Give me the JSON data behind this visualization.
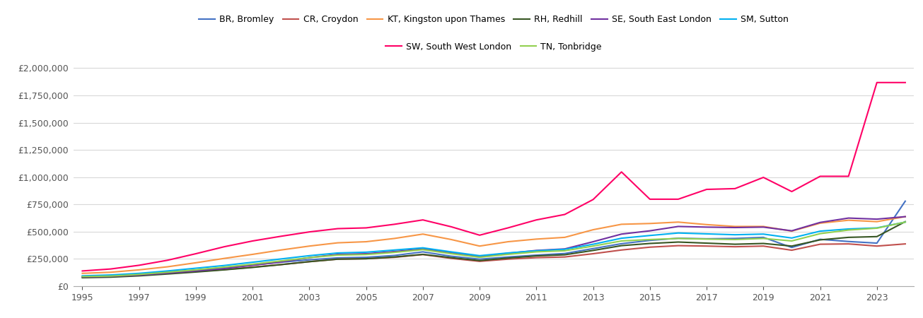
{
  "series": {
    "BR, Bromley": {
      "color": "#4472c4",
      "data": {
        "1995": 90000,
        "1996": 98000,
        "1997": 112000,
        "1998": 130000,
        "1999": 148000,
        "2000": 170000,
        "2001": 195000,
        "2002": 220000,
        "2003": 242000,
        "2004": 260000,
        "2005": 265000,
        "2006": 282000,
        "2007": 315000,
        "2008": 275000,
        "2009": 248000,
        "2010": 268000,
        "2011": 285000,
        "2012": 300000,
        "2013": 345000,
        "2014": 390000,
        "2015": 420000,
        "2016": 440000,
        "2017": 435000,
        "2018": 438000,
        "2019": 448000,
        "2020": 355000,
        "2021": 430000,
        "2022": 410000,
        "2023": 395000,
        "2024": 780000
      }
    },
    "CR, Croydon": {
      "color": "#c0504d",
      "data": {
        "1995": 82000,
        "1996": 88000,
        "1997": 100000,
        "1998": 118000,
        "1999": 135000,
        "2000": 152000,
        "2001": 175000,
        "2002": 198000,
        "2003": 225000,
        "2004": 248000,
        "2005": 252000,
        "2006": 265000,
        "2007": 290000,
        "2008": 255000,
        "2009": 228000,
        "2010": 248000,
        "2011": 262000,
        "2012": 268000,
        "2013": 298000,
        "2014": 332000,
        "2015": 358000,
        "2016": 372000,
        "2017": 368000,
        "2018": 362000,
        "2019": 368000,
        "2020": 330000,
        "2021": 385000,
        "2022": 388000,
        "2023": 368000,
        "2024": 388000
      }
    },
    "KT, Kingston upon Thames": {
      "color": "#f79646",
      "data": {
        "1995": 118000,
        "1996": 128000,
        "1997": 150000,
        "1998": 178000,
        "1999": 215000,
        "2000": 255000,
        "2001": 292000,
        "2002": 332000,
        "2003": 368000,
        "2004": 398000,
        "2005": 408000,
        "2006": 438000,
        "2007": 478000,
        "2008": 428000,
        "2009": 368000,
        "2010": 408000,
        "2011": 432000,
        "2012": 448000,
        "2013": 518000,
        "2014": 568000,
        "2015": 575000,
        "2016": 588000,
        "2017": 565000,
        "2018": 548000,
        "2019": 548000,
        "2020": 505000,
        "2021": 578000,
        "2022": 605000,
        "2023": 592000,
        "2024": 638000
      }
    },
    "RH, Redhill": {
      "color": "#375623",
      "data": {
        "1995": 78000,
        "1996": 83000,
        "1997": 95000,
        "1998": 112000,
        "1999": 130000,
        "2000": 150000,
        "2001": 172000,
        "2002": 198000,
        "2003": 225000,
        "2004": 248000,
        "2005": 252000,
        "2006": 268000,
        "2007": 292000,
        "2008": 262000,
        "2009": 235000,
        "2010": 258000,
        "2011": 278000,
        "2012": 288000,
        "2013": 328000,
        "2014": 372000,
        "2015": 392000,
        "2016": 405000,
        "2017": 395000,
        "2018": 385000,
        "2019": 392000,
        "2020": 368000,
        "2021": 425000,
        "2022": 448000,
        "2023": 455000,
        "2024": 592000
      }
    },
    "SE, South East London": {
      "color": "#7030a0",
      "data": {
        "1995": 85000,
        "1996": 90000,
        "1997": 102000,
        "1998": 120000,
        "1999": 140000,
        "2000": 162000,
        "2001": 192000,
        "2002": 222000,
        "2003": 262000,
        "2004": 292000,
        "2005": 298000,
        "2006": 318000,
        "2007": 342000,
        "2008": 308000,
        "2009": 272000,
        "2010": 302000,
        "2011": 328000,
        "2012": 342000,
        "2013": 408000,
        "2014": 478000,
        "2015": 508000,
        "2016": 548000,
        "2017": 542000,
        "2018": 538000,
        "2019": 542000,
        "2020": 508000,
        "2021": 585000,
        "2022": 625000,
        "2023": 615000,
        "2024": 638000
      }
    },
    "SM, Sutton": {
      "color": "#00b0f0",
      "data": {
        "1995": 95000,
        "1996": 103000,
        "1997": 118000,
        "1998": 140000,
        "1999": 165000,
        "2000": 190000,
        "2001": 220000,
        "2002": 250000,
        "2003": 280000,
        "2004": 305000,
        "2005": 312000,
        "2006": 332000,
        "2007": 352000,
        "2008": 315000,
        "2009": 280000,
        "2010": 305000,
        "2011": 325000,
        "2012": 338000,
        "2013": 385000,
        "2014": 440000,
        "2015": 465000,
        "2016": 488000,
        "2017": 480000,
        "2018": 472000,
        "2019": 478000,
        "2020": 442000,
        "2021": 505000,
        "2022": 525000,
        "2023": 535000,
        "2024": 588000
      }
    },
    "SW, South West London": {
      "color": "#ff0066",
      "data": {
        "1995": 140000,
        "1996": 158000,
        "1997": 192000,
        "1998": 238000,
        "1999": 298000,
        "2000": 362000,
        "2001": 415000,
        "2002": 458000,
        "2003": 498000,
        "2004": 528000,
        "2005": 535000,
        "2006": 568000,
        "2007": 608000,
        "2008": 545000,
        "2009": 468000,
        "2010": 535000,
        "2011": 608000,
        "2012": 658000,
        "2013": 795000,
        "2014": 1048000,
        "2015": 798000,
        "2016": 798000,
        "2017": 888000,
        "2018": 895000,
        "2019": 998000,
        "2020": 868000,
        "2021": 1008000,
        "2022": 1008000,
        "2023": 1868000,
        "2024": 1868000
      }
    },
    "TN, Tonbridge": {
      "color": "#92d050",
      "data": {
        "1995": 88000,
        "1996": 93000,
        "1997": 108000,
        "1998": 128000,
        "1999": 150000,
        "2000": 175000,
        "2001": 202000,
        "2002": 232000,
        "2003": 262000,
        "2004": 285000,
        "2005": 290000,
        "2006": 310000,
        "2007": 335000,
        "2008": 298000,
        "2009": 265000,
        "2010": 292000,
        "2011": 315000,
        "2012": 325000,
        "2013": 368000,
        "2014": 415000,
        "2015": 428000,
        "2016": 438000,
        "2017": 432000,
        "2018": 428000,
        "2019": 438000,
        "2020": 415000,
        "2021": 482000,
        "2022": 515000,
        "2023": 532000,
        "2024": 588000
      }
    }
  },
  "years": [
    1995,
    1996,
    1997,
    1998,
    1999,
    2000,
    2001,
    2002,
    2003,
    2004,
    2005,
    2006,
    2007,
    2008,
    2009,
    2010,
    2011,
    2012,
    2013,
    2014,
    2015,
    2016,
    2017,
    2018,
    2019,
    2020,
    2021,
    2022,
    2023,
    2024
  ],
  "ylim": [
    0,
    2100000
  ],
  "yticks": [
    0,
    250000,
    500000,
    750000,
    1000000,
    1250000,
    1500000,
    1750000,
    2000000
  ],
  "xticks": [
    1995,
    1997,
    1999,
    2001,
    2003,
    2005,
    2007,
    2009,
    2011,
    2013,
    2015,
    2017,
    2019,
    2021,
    2023
  ],
  "background_color": "#ffffff",
  "grid_color": "#d8d8d8",
  "legend_row1": [
    "BR, Bromley",
    "CR, Croydon",
    "KT, Kingston upon Thames",
    "RH, Redhill",
    "SE, South East London",
    "SM, Sutton"
  ],
  "legend_row2": [
    "SW, South West London",
    "TN, Tonbridge"
  ],
  "legend_order": [
    "BR, Bromley",
    "CR, Croydon",
    "KT, Kingston upon Thames",
    "RH, Redhill",
    "SE, South East London",
    "SM, Sutton",
    "SW, South West London",
    "TN, Tonbridge"
  ]
}
